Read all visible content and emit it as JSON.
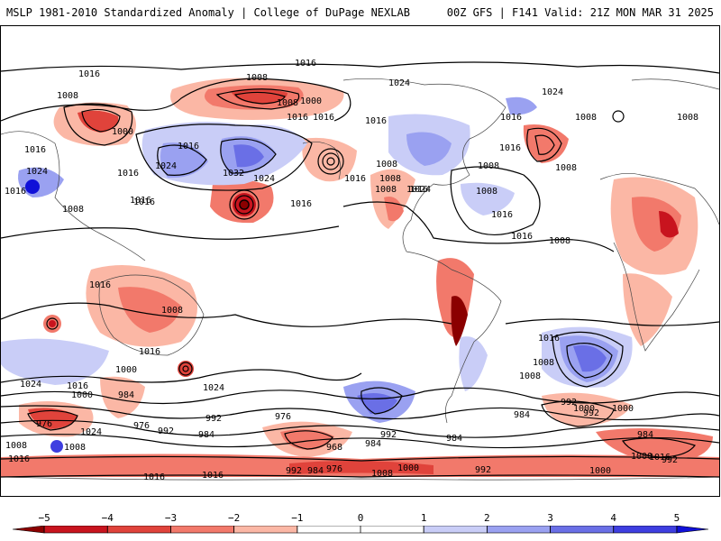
{
  "header": {
    "title_left": "MSLP 1981-2010 Standardized Anomaly | College of DuPage NEXLAB",
    "title_right": "00Z GFS | F141 Valid: 21Z MON MAR 31 2025"
  },
  "colorbar": {
    "tick_labels": [
      "−5",
      "−4",
      "−3",
      "−2",
      "−1",
      "0",
      "1",
      "2",
      "3",
      "4",
      "5"
    ],
    "ticks": [
      -5,
      -4,
      -3,
      -2,
      -1,
      0,
      1,
      2,
      3,
      4,
      5
    ],
    "min": -5.5,
    "max": 5.5,
    "colors": {
      "neg_5": "#8b0000",
      "neg_4": "#c8141e",
      "neg_3": "#e0433b",
      "neg_2": "#f2796b",
      "neg_1": "#fbb7a5",
      "neutral": "#ffffff",
      "pos_1": "#c9cdf7",
      "pos_2": "#9aa1f1",
      "pos_3": "#6a6fe6",
      "pos_4": "#3e3ee0",
      "pos_5": "#1010d8"
    }
  },
  "isobar_labels": [
    "1016",
    "1016",
    "1008",
    "1024",
    "1024",
    "1008",
    "1008",
    "1000",
    "1016",
    "1016",
    "1000",
    "1016",
    "1024",
    "1032",
    "1024",
    "1016",
    "1016",
    "1016",
    "1016",
    "1024",
    "1016",
    "1008",
    "1008",
    "1016",
    "1024",
    "1016",
    "1008",
    "1016",
    "1008",
    "1008",
    "1008",
    "1008",
    "1008",
    "1008",
    "1008",
    "1016",
    "1016",
    "1016",
    "1016",
    "1016",
    "1016",
    "1016",
    "1024",
    "1024",
    "1016",
    "1000",
    "1008",
    "984",
    "1000",
    "976",
    "976",
    "992",
    "984",
    "992",
    "976",
    "968",
    "984",
    "992",
    "984",
    "992",
    "984",
    "1008",
    "1000",
    "992",
    "1000",
    "984",
    "1008",
    "1016",
    "1008",
    "1024",
    "992",
    "984",
    "976",
    "1008",
    "1000",
    "1016",
    "1016",
    "992",
    "1000",
    "992",
    "1016",
    "1000",
    "1008",
    "1016"
  ]
}
